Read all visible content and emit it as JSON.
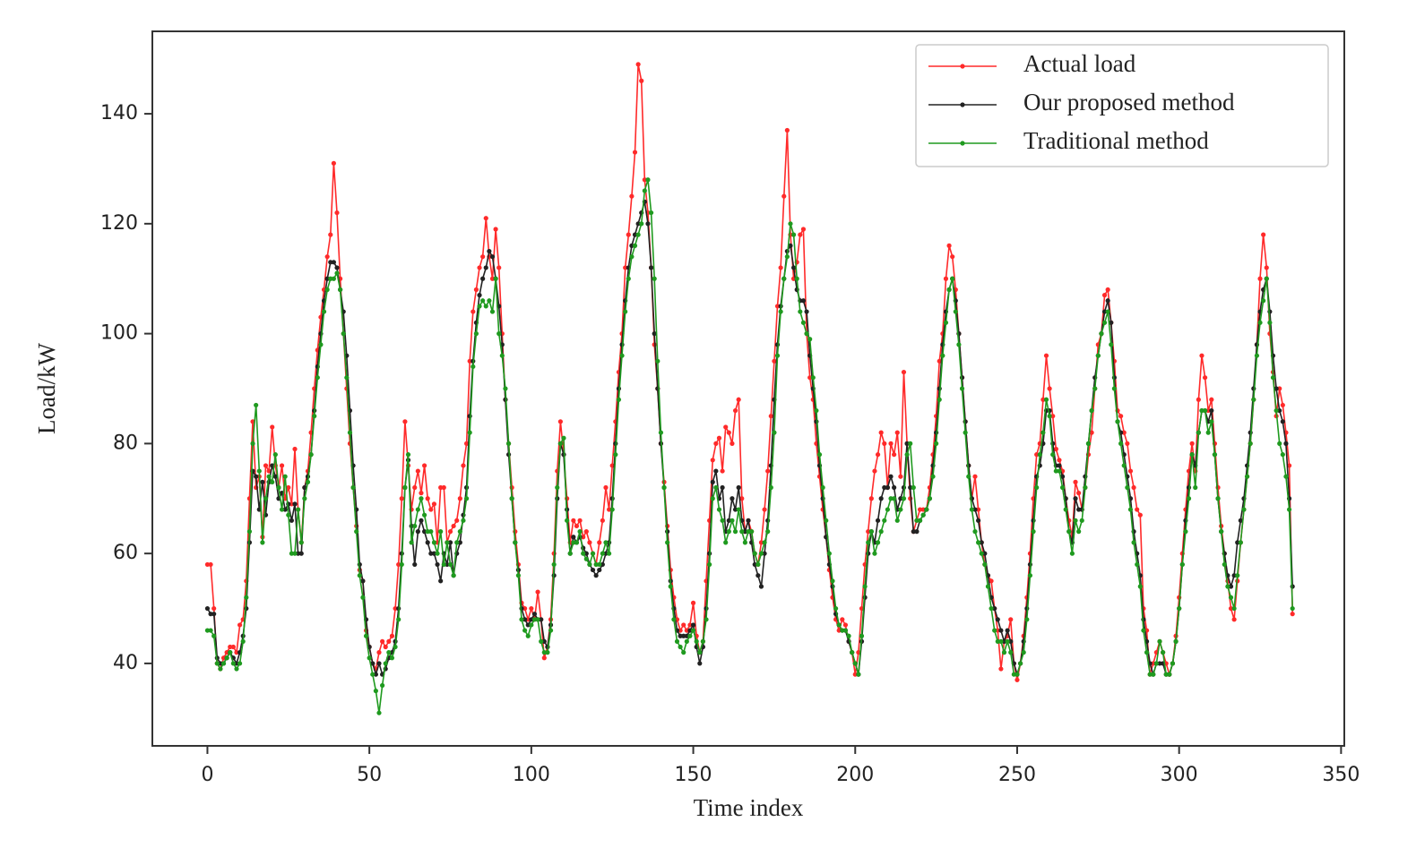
{
  "chart_data": {
    "type": "line",
    "xlabel": "Time index",
    "ylabel": "Load/kW",
    "xlim": [
      -17,
      351
    ],
    "ylim": [
      25,
      155
    ],
    "xticks": [
      0,
      50,
      100,
      150,
      200,
      250,
      300,
      350
    ],
    "yticks": [
      40,
      60,
      80,
      100,
      120,
      140
    ],
    "legend": "upper right",
    "x": [
      0,
      1,
      2,
      3,
      4,
      5,
      6,
      7,
      8,
      9,
      10,
      11,
      12,
      13,
      14,
      15,
      16,
      17,
      18,
      19,
      20,
      21,
      22,
      23,
      24,
      25,
      26,
      27,
      28,
      29,
      30,
      31,
      32,
      33,
      34,
      35,
      36,
      37,
      38,
      39,
      40,
      41,
      42,
      43,
      44,
      45,
      46,
      47,
      48,
      49,
      50,
      51,
      52,
      53,
      54,
      55,
      56,
      57,
      58,
      59,
      60,
      61,
      62,
      63,
      64,
      65,
      66,
      67,
      68,
      69,
      70,
      71,
      72,
      73,
      74,
      75,
      76,
      77,
      78,
      79,
      80,
      81,
      82,
      83,
      84,
      85,
      86,
      87,
      88,
      89,
      90,
      91,
      92,
      93,
      94,
      95,
      96,
      97,
      98,
      99,
      100,
      101,
      102,
      103,
      104,
      105,
      106,
      107,
      108,
      109,
      110,
      111,
      112,
      113,
      114,
      115,
      116,
      117,
      118,
      119,
      120,
      121,
      122,
      123,
      124,
      125,
      126,
      127,
      128,
      129,
      130,
      131,
      132,
      133,
      134,
      135,
      136,
      137,
      138,
      139,
      140,
      141,
      142,
      143,
      144,
      145,
      146,
      147,
      148,
      149,
      150,
      151,
      152,
      153,
      154,
      155,
      156,
      157,
      158,
      159,
      160,
      161,
      162,
      163,
      164,
      165,
      166,
      167,
      168,
      169,
      170,
      171,
      172,
      173,
      174,
      175,
      176,
      177,
      178,
      179,
      180,
      181,
      182,
      183,
      184,
      185,
      186,
      187,
      188,
      189,
      190,
      191,
      192,
      193,
      194,
      195,
      196,
      197,
      198,
      199,
      200,
      201,
      202,
      203,
      204,
      205,
      206,
      207,
      208,
      209,
      210,
      211,
      212,
      213,
      214,
      215,
      216,
      217,
      218,
      219,
      220,
      221,
      222,
      223,
      224,
      225,
      226,
      227,
      228,
      229,
      230,
      231,
      232,
      233,
      234,
      235,
      236,
      237,
      238,
      239,
      240,
      241,
      242,
      243,
      244,
      245,
      246,
      247,
      248,
      249,
      250,
      251,
      252,
      253,
      254,
      255,
      256,
      257,
      258,
      259,
      260,
      261,
      262,
      263,
      264,
      265,
      266,
      267,
      268,
      269,
      270,
      271,
      272,
      273,
      274,
      275,
      276,
      277,
      278,
      279,
      280,
      281,
      282,
      283,
      284,
      285,
      286,
      287,
      288,
      289,
      290,
      291,
      292,
      293,
      294,
      295,
      296,
      297,
      298,
      299,
      300,
      301,
      302,
      303,
      304,
      305,
      306,
      307,
      308,
      309,
      310,
      311,
      312,
      313,
      314,
      315,
      316,
      317,
      318,
      319,
      320,
      321,
      322,
      323,
      324,
      325,
      326,
      327,
      328,
      329,
      330,
      331,
      332,
      333,
      334,
      335
    ],
    "series": [
      {
        "name": "Actual load",
        "color": "#ff2a2a",
        "values": [
          58,
          58,
          50,
          40,
          39,
          41,
          42,
          43,
          43,
          42,
          47,
          48,
          55,
          70,
          84,
          72,
          74,
          63,
          76,
          75,
          83,
          76,
          72,
          76,
          70,
          72,
          69,
          79,
          68,
          62,
          72,
          75,
          82,
          90,
          97,
          103,
          108,
          114,
          118,
          131,
          122,
          110,
          100,
          90,
          80,
          72,
          65,
          57,
          55,
          46,
          43,
          40,
          39,
          42,
          44,
          43,
          44,
          45,
          50,
          58,
          70,
          84,
          76,
          68,
          72,
          75,
          71,
          76,
          70,
          68,
          69,
          62,
          72,
          72,
          62,
          64,
          65,
          66,
          70,
          76,
          80,
          95,
          104,
          108,
          112,
          114,
          121,
          114,
          110,
          119,
          112,
          100,
          88,
          80,
          72,
          64,
          58,
          51,
          50,
          48,
          50,
          48,
          53,
          48,
          41,
          43,
          48,
          60,
          75,
          84,
          78,
          70,
          62,
          66,
          65,
          66,
          63,
          64,
          62,
          60,
          58,
          62,
          66,
          72,
          68,
          76,
          84,
          93,
          100,
          112,
          118,
          125,
          133,
          149,
          146,
          128,
          122,
          112,
          98,
          90,
          80,
          73,
          65,
          57,
          52,
          48,
          46,
          47,
          46,
          47,
          51,
          45,
          42,
          44,
          55,
          66,
          77,
          80,
          81,
          75,
          83,
          82,
          80,
          86,
          88,
          70,
          64,
          66,
          64,
          60,
          58,
          62,
          68,
          75,
          85,
          95,
          105,
          112,
          125,
          137,
          118,
          110,
          113,
          118,
          119,
          100,
          92,
          88,
          80,
          74,
          68,
          63,
          57,
          52,
          48,
          46,
          48,
          47,
          44,
          42,
          38,
          42,
          50,
          58,
          64,
          70,
          75,
          78,
          82,
          80,
          72,
          80,
          78,
          82,
          74,
          93,
          80,
          70,
          64,
          66,
          68,
          68,
          68,
          72,
          78,
          85,
          95,
          100,
          110,
          116,
          114,
          108,
          100,
          92,
          84,
          76,
          70,
          74,
          68,
          62,
          58,
          56,
          55,
          50,
          46,
          39,
          44,
          45,
          48,
          40,
          37,
          40,
          45,
          52,
          60,
          70,
          78,
          80,
          88,
          96,
          90,
          85,
          79,
          77,
          75,
          70,
          66,
          63,
          73,
          71,
          68,
          72,
          78,
          82,
          90,
          98,
          100,
          107,
          108,
          102,
          95,
          86,
          85,
          82,
          80,
          75,
          72,
          68,
          67,
          50,
          46,
          38,
          40,
          42,
          44,
          42,
          40,
          38,
          40,
          45,
          52,
          60,
          68,
          75,
          80,
          75,
          88,
          96,
          92,
          86,
          88,
          80,
          72,
          65,
          60,
          55,
          50,
          48,
          55,
          62,
          68,
          74,
          80,
          88,
          98,
          110,
          118,
          112,
          100,
          93,
          85,
          90,
          87,
          82,
          76,
          49
        ]
      },
      {
        "name": "Our proposed method",
        "color": "#222222",
        "values": [
          50,
          49,
          49,
          41,
          40,
          40,
          41,
          42,
          41,
          40,
          42,
          45,
          50,
          62,
          75,
          74,
          68,
          73,
          67,
          73,
          76,
          74,
          70,
          71,
          68,
          69,
          66,
          69,
          60,
          60,
          72,
          74,
          78,
          86,
          94,
          100,
          106,
          110,
          113,
          113,
          112,
          108,
          104,
          96,
          86,
          76,
          68,
          58,
          55,
          48,
          43,
          40,
          38,
          40,
          38,
          39,
          41,
          42,
          44,
          50,
          60,
          72,
          77,
          65,
          58,
          64,
          66,
          64,
          62,
          60,
          60,
          58,
          55,
          60,
          58,
          62,
          56,
          60,
          62,
          67,
          72,
          85,
          95,
          102,
          107,
          110,
          112,
          115,
          114,
          110,
          105,
          98,
          88,
          78,
          70,
          62,
          57,
          50,
          48,
          47,
          48,
          49,
          48,
          48,
          44,
          43,
          47,
          56,
          70,
          80,
          78,
          68,
          60,
          63,
          62,
          63,
          61,
          60,
          58,
          57,
          56,
          57,
          58,
          60,
          62,
          70,
          80,
          90,
          98,
          106,
          112,
          116,
          118,
          120,
          122,
          124,
          120,
          112,
          100,
          90,
          80,
          72,
          64,
          55,
          50,
          46,
          45,
          45,
          45,
          46,
          47,
          43,
          40,
          43,
          50,
          60,
          73,
          75,
          70,
          72,
          64,
          66,
          70,
          68,
          72,
          66,
          64,
          66,
          62,
          58,
          56,
          54,
          60,
          66,
          76,
          88,
          98,
          105,
          110,
          115,
          116,
          112,
          108,
          106,
          106,
          104,
          96,
          90,
          84,
          76,
          70,
          63,
          58,
          54,
          49,
          47,
          46,
          46,
          44,
          42,
          40,
          38,
          44,
          52,
          60,
          64,
          62,
          66,
          70,
          72,
          72,
          74,
          72,
          68,
          70,
          72,
          80,
          72,
          64,
          64,
          66,
          67,
          68,
          70,
          76,
          82,
          90,
          98,
          104,
          108,
          110,
          106,
          100,
          92,
          84,
          76,
          70,
          68,
          66,
          62,
          60,
          56,
          52,
          50,
          48,
          46,
          44,
          46,
          44,
          40,
          38,
          40,
          44,
          50,
          58,
          66,
          74,
          76,
          80,
          86,
          86,
          80,
          76,
          76,
          74,
          70,
          64,
          62,
          70,
          68,
          68,
          74,
          80,
          86,
          92,
          96,
          100,
          104,
          106,
          102,
          92,
          84,
          82,
          78,
          74,
          70,
          64,
          60,
          56,
          48,
          44,
          40,
          38,
          40,
          40,
          40,
          38,
          38,
          40,
          44,
          50,
          58,
          66,
          72,
          78,
          76,
          82,
          86,
          86,
          84,
          86,
          78,
          70,
          64,
          60,
          56,
          54,
          56,
          62,
          66,
          70,
          76,
          82,
          90,
          98,
          104,
          108,
          110,
          104,
          96,
          90,
          86,
          84,
          80,
          70,
          54
        ]
      },
      {
        "name": "Traditional method",
        "color": "#1f9a1f",
        "values": [
          46,
          46,
          45,
          40,
          39,
          40,
          41,
          42,
          40,
          39,
          40,
          44,
          52,
          64,
          80,
          87,
          75,
          62,
          70,
          74,
          73,
          78,
          72,
          68,
          74,
          67,
          60,
          60,
          68,
          62,
          70,
          73,
          78,
          85,
          92,
          98,
          104,
          108,
          110,
          110,
          111,
          108,
          100,
          92,
          82,
          72,
          64,
          56,
          52,
          45,
          41,
          38,
          35,
          31,
          36,
          40,
          42,
          41,
          43,
          48,
          58,
          72,
          78,
          62,
          65,
          68,
          70,
          67,
          64,
          64,
          62,
          60,
          64,
          58,
          62,
          58,
          56,
          62,
          64,
          66,
          70,
          82,
          94,
          100,
          105,
          106,
          105,
          106,
          104,
          110,
          100,
          96,
          90,
          80,
          70,
          62,
          56,
          48,
          46,
          45,
          47,
          48,
          48,
          44,
          42,
          42,
          46,
          58,
          72,
          80,
          81,
          66,
          60,
          62,
          62,
          64,
          60,
          59,
          58,
          60,
          58,
          58,
          60,
          62,
          60,
          68,
          78,
          88,
          96,
          104,
          110,
          114,
          116,
          118,
          120,
          126,
          128,
          122,
          110,
          95,
          82,
          72,
          62,
          54,
          48,
          44,
          43,
          42,
          44,
          45,
          46,
          44,
          42,
          44,
          48,
          58,
          70,
          72,
          68,
          66,
          62,
          64,
          66,
          64,
          68,
          64,
          62,
          64,
          64,
          60,
          58,
          60,
          62,
          64,
          72,
          82,
          96,
          104,
          110,
          114,
          120,
          118,
          110,
          104,
          102,
          100,
          99,
          92,
          86,
          78,
          72,
          66,
          60,
          55,
          50,
          47,
          46,
          46,
          45,
          42,
          40,
          38,
          45,
          54,
          62,
          64,
          60,
          62,
          64,
          66,
          68,
          70,
          70,
          66,
          68,
          70,
          78,
          80,
          72,
          66,
          66,
          67,
          68,
          70,
          74,
          80,
          88,
          96,
          102,
          108,
          110,
          104,
          98,
          90,
          82,
          74,
          68,
          64,
          62,
          60,
          58,
          54,
          50,
          46,
          44,
          44,
          42,
          44,
          42,
          38,
          38,
          40,
          42,
          48,
          56,
          64,
          72,
          78,
          82,
          88,
          85,
          78,
          75,
          75,
          72,
          68,
          64,
          60,
          66,
          64,
          66,
          72,
          80,
          86,
          90,
          96,
          100,
          102,
          104,
          98,
          90,
          84,
          80,
          76,
          72,
          68,
          62,
          58,
          54,
          46,
          42,
          38,
          38,
          40,
          44,
          42,
          38,
          38,
          40,
          44,
          50,
          58,
          64,
          70,
          78,
          72,
          82,
          86,
          86,
          82,
          84,
          78,
          70,
          64,
          58,
          54,
          52,
          50,
          56,
          62,
          68,
          74,
          80,
          88,
          96,
          102,
          106,
          110,
          102,
          92,
          86,
          80,
          78,
          74,
          68,
          50
        ]
      }
    ]
  }
}
